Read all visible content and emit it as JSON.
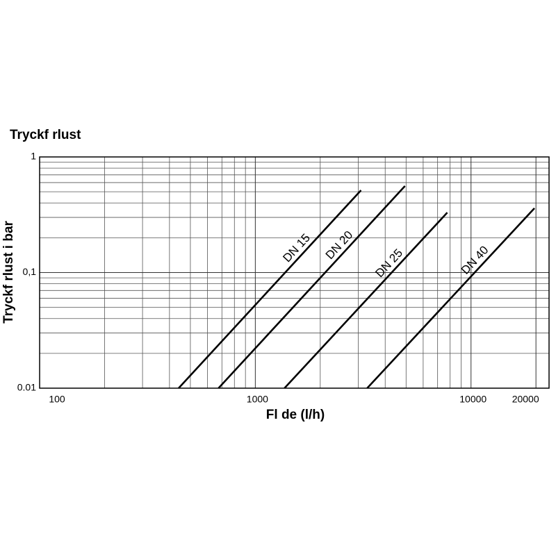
{
  "chart_data": {
    "type": "line",
    "title": "Tryckf rlust",
    "x_label": "Fl de (l/h)",
    "y_label": "Tryckf rlust i bar",
    "log_x": true,
    "log_y": true,
    "grid": true,
    "color": "#000000",
    "xlim": [
      100,
      23000
    ],
    "ylim": [
      0.01,
      1
    ],
    "xticks": [
      100,
      1000,
      10000,
      20000
    ],
    "yticks": [
      0.01,
      {
        "value": 0.1,
        "label": "0,1"
      },
      1
    ],
    "x_minor_ticks": [
      200,
      300,
      400,
      500,
      600,
      700,
      800,
      900,
      2000,
      3000,
      4000,
      5000,
      6000,
      7000,
      8000,
      9000
    ],
    "y_minor_ticks": [
      0.02,
      0.03,
      0.04,
      0.05,
      0.06,
      0.07,
      0.08,
      0.09,
      0.2,
      0.3,
      0.4,
      0.5,
      0.6,
      0.7,
      0.8,
      0.9
    ],
    "series": [
      {
        "name": "DN 15",
        "x": [
          441,
          3090
        ],
        "values": [
          0.01,
          0.515
        ]
      },
      {
        "name": "DN 20",
        "x": [
          675,
          4940
        ],
        "values": [
          0.01,
          0.56
        ]
      },
      {
        "name": "DN 25",
        "x": [
          1365,
          7760
        ],
        "values": [
          0.01,
          0.33
        ]
      },
      {
        "name": "DN 40",
        "x": [
          3300,
          19680
        ],
        "values": [
          0.01,
          0.36
        ]
      }
    ]
  }
}
